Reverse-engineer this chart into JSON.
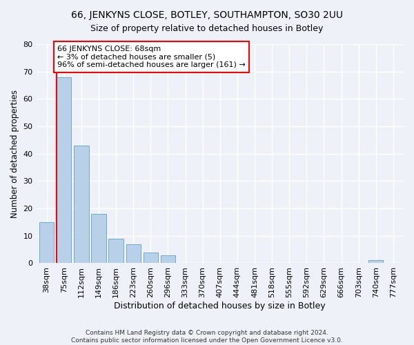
{
  "title1": "66, JENKYNS CLOSE, BOTLEY, SOUTHAMPTON, SO30 2UU",
  "title2": "Size of property relative to detached houses in Botley",
  "xlabel": "Distribution of detached houses by size in Botley",
  "ylabel": "Number of detached properties",
  "bar_labels": [
    "38sqm",
    "75sqm",
    "112sqm",
    "149sqm",
    "186sqm",
    "223sqm",
    "260sqm",
    "296sqm",
    "333sqm",
    "370sqm",
    "407sqm",
    "444sqm",
    "481sqm",
    "518sqm",
    "555sqm",
    "592sqm",
    "629sqm",
    "666sqm",
    "703sqm",
    "740sqm",
    "777sqm"
  ],
  "bar_values": [
    15,
    68,
    43,
    18,
    9,
    7,
    4,
    3,
    0,
    0,
    0,
    0,
    0,
    0,
    0,
    0,
    0,
    0,
    0,
    1,
    0
  ],
  "bar_color": "#b8d0e8",
  "bar_edgecolor": "#6aaad4",
  "annotation_text1": "66 JENKYNS CLOSE: 68sqm",
  "annotation_text2": "← 3% of detached houses are smaller (5)",
  "annotation_text3": "96% of semi-detached houses are larger (161) →",
  "annotation_box_color": "white",
  "annotation_box_edgecolor": "red",
  "vline_color": "red",
  "footer1": "Contains HM Land Registry data © Crown copyright and database right 2024.",
  "footer2": "Contains public sector information licensed under the Open Government Licence v3.0.",
  "ylim": [
    0,
    80
  ],
  "figsize": [
    6.0,
    5.0
  ],
  "dpi": 100,
  "bg_color": "#eef2f8"
}
